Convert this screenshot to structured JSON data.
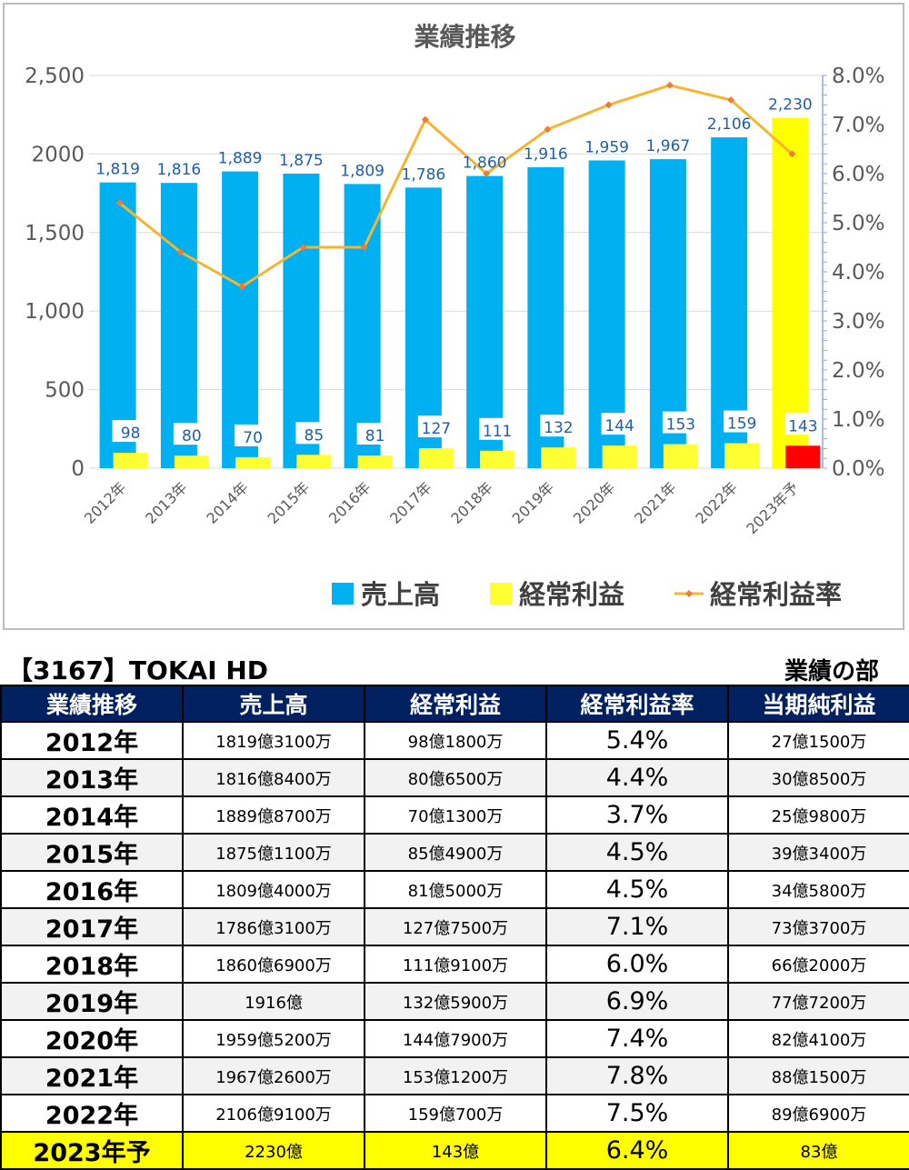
{
  "chart_data": {
    "type": "bar",
    "title": "業績推移",
    "categories": [
      "2012年",
      "2013年",
      "2014年",
      "2015年",
      "2016年",
      "2017年",
      "2018年",
      "2019年",
      "2020年",
      "2021年",
      "2022年",
      "2023年予"
    ],
    "series": [
      {
        "name": "売上高",
        "type": "bar",
        "axis": "left",
        "values": [
          1819,
          1816,
          1889,
          1875,
          1809,
          1786,
          1860,
          1916,
          1959,
          1967,
          2106,
          2230
        ],
        "labels": [
          "1,819",
          "1,816",
          "1,889",
          "1,875",
          "1,809",
          "1,786",
          "1,860",
          "1,916",
          "1,959",
          "1,967",
          "2,106",
          "2,230"
        ],
        "color": "#00b0f0",
        "forecast_color": "#ffff00"
      },
      {
        "name": "経常利益",
        "type": "bar",
        "axis": "left",
        "values": [
          98,
          80,
          70,
          85,
          81,
          127,
          111,
          132,
          144,
          153,
          159,
          143
        ],
        "labels": [
          "98",
          "80",
          "70",
          "85",
          "81",
          "127",
          "111",
          "132",
          "144",
          "153",
          "159",
          "143"
        ],
        "color": "#ffff33",
        "forecast_color": "#ff0000"
      },
      {
        "name": "経常利益率",
        "type": "line",
        "axis": "right",
        "values": [
          5.4,
          4.4,
          3.7,
          4.5,
          4.5,
          7.1,
          6.0,
          6.9,
          7.4,
          7.8,
          7.5,
          6.4
        ],
        "color": "#f4b183",
        "line_color": "#f5b532"
      }
    ],
    "y_left": {
      "ylim": [
        0,
        2500
      ],
      "ticks": [
        "0",
        "500",
        "1,000",
        "1,500",
        "2000",
        "2,500"
      ],
      "tick_values": [
        0,
        500,
        1000,
        1500,
        2000,
        2500
      ]
    },
    "y_right": {
      "ylim": [
        0,
        8
      ],
      "ticks": [
        "0.0%",
        "1.0%",
        "2.0%",
        "3.0%",
        "4.0%",
        "5.0%",
        "6.0%",
        "7.0%",
        "8.0%"
      ],
      "tick_values": [
        0,
        1,
        2,
        3,
        4,
        5,
        6,
        7,
        8
      ]
    },
    "legend": "bottom",
    "grid": true
  },
  "table": {
    "company": "【3167】TOKAI HD",
    "section": "業績の部",
    "headers": [
      "業績推移",
      "売上高",
      "経常利益",
      "経常利益率",
      "当期純利益"
    ],
    "rows": [
      [
        "2012年",
        "1819億3100万",
        "98億1800万",
        "5.4%",
        "27億1500万"
      ],
      [
        "2013年",
        "1816億8400万",
        "80億6500万",
        "4.4%",
        "30億8500万"
      ],
      [
        "2014年",
        "1889億8700万",
        "70億1300万",
        "3.7%",
        "25億9800万"
      ],
      [
        "2015年",
        "1875億1100万",
        "85億4900万",
        "4.5%",
        "39億3400万"
      ],
      [
        "2016年",
        "1809億4000万",
        "81億5000万",
        "4.5%",
        "34億5800万"
      ],
      [
        "2017年",
        "1786億3100万",
        "127億7500万",
        "7.1%",
        "73億3700万"
      ],
      [
        "2018年",
        "1860億6900万",
        "111億9100万",
        "6.0%",
        "66億2000万"
      ],
      [
        "2019年",
        "1916億",
        "132億5900万",
        "6.9%",
        "77億7200万"
      ],
      [
        "2020年",
        "1959億5200万",
        "144億7900万",
        "7.4%",
        "82億4100万"
      ],
      [
        "2021年",
        "1967億2600万",
        "153億1200万",
        "7.8%",
        "88億1500万"
      ],
      [
        "2022年",
        "2106億9100万",
        "159億700万",
        "7.5%",
        "89億6900万"
      ],
      [
        "2023年予",
        "2230億",
        "143億",
        "6.4%",
        "83億"
      ]
    ],
    "forecast_color": "#ffff00",
    "header_color": "#002060"
  }
}
